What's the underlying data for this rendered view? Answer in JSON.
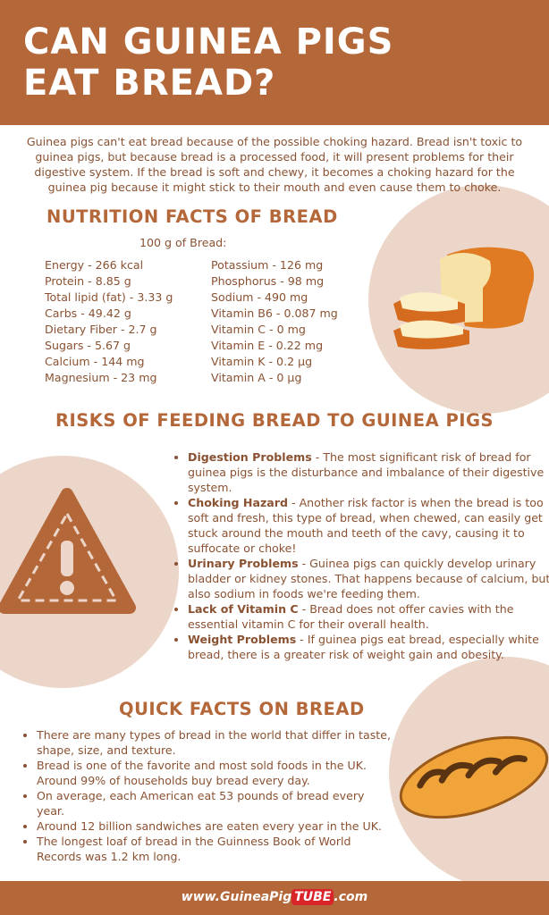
{
  "header": {
    "title": [
      "CAN GUINEA PIGS",
      "EAT BREAD?"
    ]
  },
  "intro": "Guinea pigs can't eat bread because of the possible choking hazard. Bread isn't toxic to guinea pigs, but because bread is a processed food, it will present problems for their digestive system. If the bread is soft and chewy, it becomes a choking hazard for the guinea pig because it might stick to their mouth and even cause them to choke.",
  "nutrition": {
    "heading": "NUTRITION FACTS OF BREAD",
    "serving": "100 g of Bread:",
    "left": [
      "Energy - 266 kcal",
      "Protein - 8.85 g",
      "Total lipid (fat) - 3.33 g",
      "Carbs - 49.42 g",
      "Dietary Fiber - 2.7 g",
      "Sugars - 5.67 g",
      "Calcium - 144 mg",
      "Magnesium - 23 mg"
    ],
    "right": [
      "Potassium - 126 mg",
      "Phosphorus - 98 mg",
      "Sodium - 490 mg",
      "Vitamin B6 - 0.087 mg",
      "Vitamin C - 0 mg",
      "Vitamin E - 0.22 mg",
      "Vitamin K - 0.2 µg",
      "Vitamin A - 0 µg"
    ]
  },
  "risks": {
    "heading": "RISKS OF FEEDING BREAD TO GUINEA PIGS",
    "items": [
      {
        "title": "Digestion Problems",
        "text": " -   The most significant risk of bread for guinea pigs is the disturbance and imbalance of their digestive system."
      },
      {
        "title": "Choking Hazard",
        "text": " - Another risk factor is when the bread is too soft and fresh, this type of bread, when chewed, can easily get stuck around the mouth and teeth of the cavy, causing it to suffocate or choke!"
      },
      {
        "title": "Urinary Problems",
        "text": " - Guinea pigs can quickly develop urinary bladder or kidney stones. That happens because of calcium, but also sodium in foods we're feeding them."
      },
      {
        "title": "Lack of Vitamin C",
        "text": " - Bread does not offer cavies with the essential vitamin C for their overall health."
      },
      {
        "title": "Weight Problems",
        "text": " - If guinea pigs eat bread, especially white bread, there is a greater risk of weight gain and obesity."
      }
    ]
  },
  "quick_facts": {
    "heading": "QUICK FACTS ON BREAD",
    "items": [
      "There are many types of bread in the world that differ in taste, shape, size, and texture.",
      "Bread is one of the favorite and most sold foods in the UK. Around 99% of households buy bread every day.",
      "On average, each American eat 53 pounds of bread every year.",
      "Around 12 billion sandwiches are eaten every year in the UK.",
      "The longest loaf of bread in the Guinness Book of World Records was 1.2 km long."
    ]
  },
  "footer": {
    "prefix": "www.GuineaPig",
    "brand": "TUBE",
    "suffix": ".com"
  }
}
